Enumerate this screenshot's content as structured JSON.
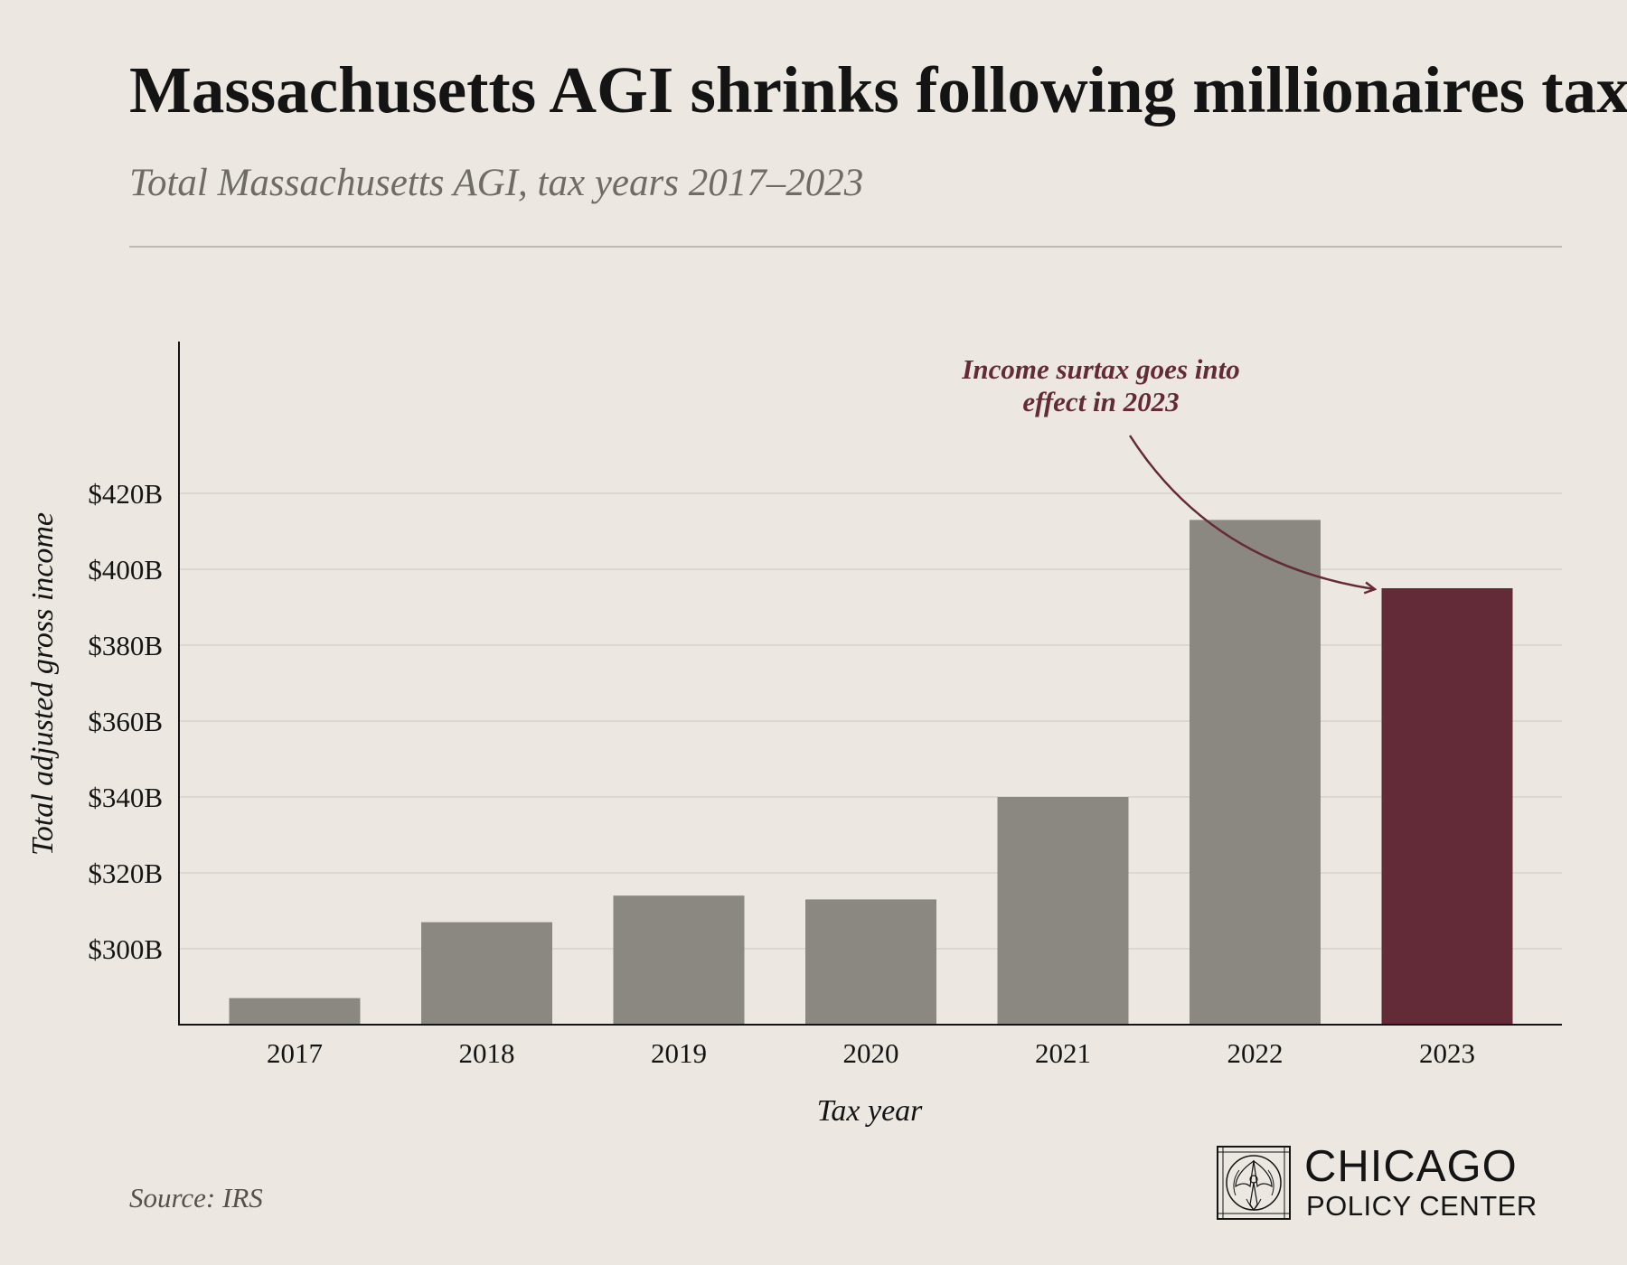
{
  "header": {
    "title": "Massachusetts AGI shrinks following millionaires tax",
    "subtitle": "Total Massachusetts AGI, tax years 2017–2023"
  },
  "footer": {
    "source": "Source: IRS",
    "logo_line1": "CHICAGO",
    "logo_line2": "POLICY CENTER"
  },
  "chart_data": {
    "type": "bar",
    "title": "Massachusetts AGI shrinks following millionaires tax",
    "subtitle": "Total Massachusetts AGI, tax years 2017–2023",
    "xlabel": "Tax year",
    "ylabel": "Total adjusted gross income",
    "categories": [
      "2017",
      "2018",
      "2019",
      "2020",
      "2021",
      "2022",
      "2023"
    ],
    "values": [
      287,
      307,
      314,
      313,
      340,
      413,
      395
    ],
    "value_unit": "billions USD",
    "ylim": [
      280,
      460
    ],
    "yticks": [
      300,
      320,
      340,
      360,
      380,
      400,
      420
    ],
    "ytick_labels": [
      "$300B",
      "$320B",
      "$340B",
      "$360B",
      "$380B",
      "$400B",
      "$420B"
    ],
    "grid": true,
    "highlight_category": "2023",
    "colors": {
      "bar": "#8b8881",
      "highlight": "#632a38",
      "annotation": "#632a38",
      "grid": "#d6d1ca",
      "axis": "#141414"
    },
    "annotation": {
      "lines": [
        "Income surtax goes into",
        "effect in 2023"
      ],
      "target_category": "2023"
    }
  }
}
